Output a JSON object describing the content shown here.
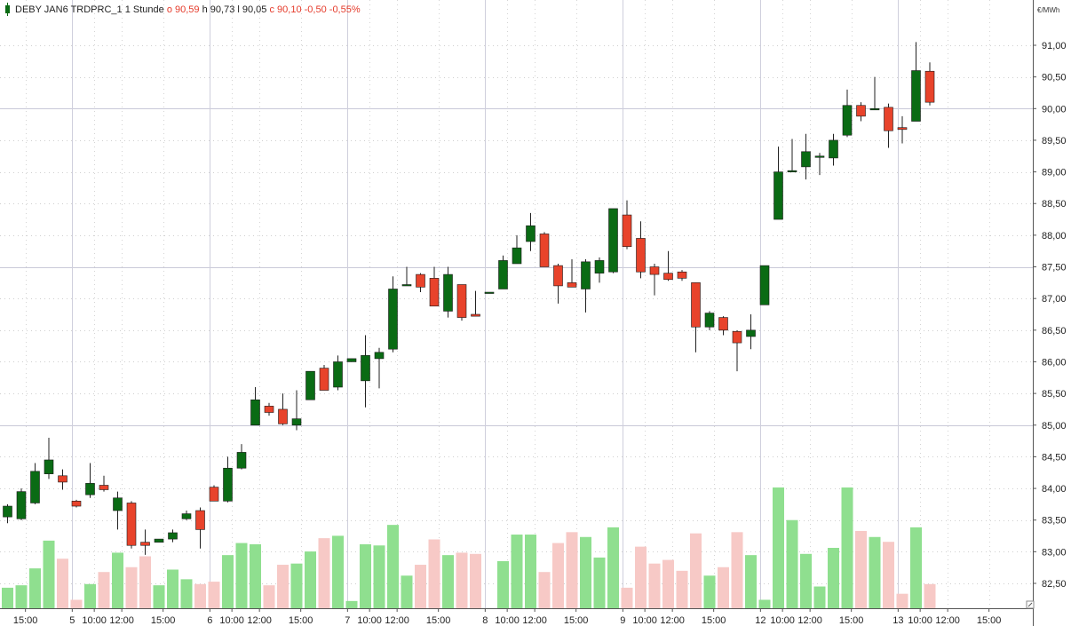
{
  "header": {
    "symbol": "DEBY JAN6 TRDPRC_1",
    "interval": "1 Stunde",
    "o_label": "o",
    "o_value": "90,59",
    "h_label": "h",
    "h_value": "90,73",
    "l_label": "l",
    "l_value": "90,05",
    "c_label": "c",
    "c_value": "90,10",
    "change": "-0,50",
    "change_pct": "-0,55%"
  },
  "colors": {
    "up": "#0a6b14",
    "down": "#e8432b",
    "vol_up": "#8fdf8f",
    "vol_down": "#f7c9c6",
    "grid": "#d6d6e0",
    "header_red": "#e53a2a"
  },
  "chart_data": {
    "type": "candlestick",
    "title": "",
    "y_unit": "€/MWh",
    "ylim": [
      82.2,
      91.45
    ],
    "y_ticks": [
      "91,00",
      "90,50",
      "90,00",
      "89,50",
      "89,00",
      "88,50",
      "88,00",
      "87,50",
      "87,00",
      "86,50",
      "86,00",
      "85,50",
      "85,00",
      "84,50",
      "84,00",
      "83,50",
      "83,00",
      "82,50"
    ],
    "y_tick_values": [
      91.0,
      90.5,
      90.0,
      89.5,
      89.0,
      88.5,
      88.0,
      87.5,
      87.0,
      86.5,
      86.0,
      85.5,
      85.0,
      84.5,
      84.0,
      83.5,
      83.0,
      82.5
    ],
    "x_ticks": [
      {
        "i": 1.3,
        "label": "15:00"
      },
      {
        "i": 4.7,
        "label": "5"
      },
      {
        "i": 6.3,
        "label": "10:00"
      },
      {
        "i": 8.3,
        "label": "12:00"
      },
      {
        "i": 11.3,
        "label": "15:00"
      },
      {
        "i": 14.7,
        "label": "6"
      },
      {
        "i": 16.3,
        "label": "10:00"
      },
      {
        "i": 18.3,
        "label": "12:00"
      },
      {
        "i": 21.3,
        "label": "15:00"
      },
      {
        "i": 24.7,
        "label": "7"
      },
      {
        "i": 26.3,
        "label": "10:00"
      },
      {
        "i": 28.3,
        "label": "12:00"
      },
      {
        "i": 31.3,
        "label": "15:00"
      },
      {
        "i": 34.7,
        "label": "8"
      },
      {
        "i": 36.3,
        "label": "10:00"
      },
      {
        "i": 38.3,
        "label": "12:00"
      },
      {
        "i": 41.3,
        "label": "15:00"
      },
      {
        "i": 44.7,
        "label": "9"
      },
      {
        "i": 46.3,
        "label": "10:00"
      },
      {
        "i": 48.3,
        "label": "12:00"
      },
      {
        "i": 51.3,
        "label": "15:00"
      },
      {
        "i": 54.7,
        "label": "12"
      },
      {
        "i": 56.3,
        "label": "10:00"
      },
      {
        "i": 58.3,
        "label": "12:00"
      },
      {
        "i": 61.3,
        "label": "15:00"
      },
      {
        "i": 64.7,
        "label": "13"
      },
      {
        "i": 66.3,
        "label": "10:00"
      },
      {
        "i": 68.3,
        "label": "12:00"
      },
      {
        "i": 71.3,
        "label": "15:00"
      }
    ],
    "day_separators": [
      4.7,
      14.7,
      24.7,
      34.7,
      44.7,
      54.7,
      64.7
    ],
    "candles": [
      {
        "o": 83.55,
        "h": 83.75,
        "l": 83.45,
        "c": 83.72
      },
      {
        "o": 83.52,
        "h": 84.0,
        "l": 83.5,
        "c": 83.95
      },
      {
        "o": 83.77,
        "h": 84.4,
        "l": 83.75,
        "c": 84.27
      },
      {
        "o": 84.23,
        "h": 84.8,
        "l": 84.15,
        "c": 84.45
      },
      {
        "o": 84.2,
        "h": 84.3,
        "l": 83.98,
        "c": 84.1
      },
      {
        "o": 83.8,
        "h": 83.82,
        "l": 83.7,
        "c": 83.72
      },
      {
        "o": 83.9,
        "h": 84.4,
        "l": 83.85,
        "c": 84.08
      },
      {
        "o": 84.05,
        "h": 84.2,
        "l": 83.95,
        "c": 83.98
      },
      {
        "o": 83.65,
        "h": 83.95,
        "l": 83.35,
        "c": 83.85
      },
      {
        "o": 83.77,
        "h": 83.8,
        "l": 83.05,
        "c": 83.1
      },
      {
        "o": 83.15,
        "h": 83.35,
        "l": 82.95,
        "c": 83.1
      },
      {
        "o": 83.15,
        "h": 83.2,
        "l": 83.15,
        "c": 83.2
      },
      {
        "o": 83.2,
        "h": 83.35,
        "l": 83.15,
        "c": 83.3
      },
      {
        "o": 83.52,
        "h": 83.65,
        "l": 83.5,
        "c": 83.6
      },
      {
        "o": 83.65,
        "h": 83.7,
        "l": 83.05,
        "c": 83.35
      },
      {
        "o": 84.02,
        "h": 84.05,
        "l": 83.8,
        "c": 83.8
      },
      {
        "o": 83.8,
        "h": 84.5,
        "l": 83.78,
        "c": 84.32
      },
      {
        "o": 84.32,
        "h": 84.7,
        "l": 84.3,
        "c": 84.57
      },
      {
        "o": 85.0,
        "h": 85.6,
        "l": 85.0,
        "c": 85.4
      },
      {
        "o": 85.3,
        "h": 85.35,
        "l": 85.15,
        "c": 85.2
      },
      {
        "o": 85.25,
        "h": 85.5,
        "l": 85.0,
        "c": 85.02
      },
      {
        "o": 85.0,
        "h": 85.55,
        "l": 84.92,
        "c": 85.1
      },
      {
        "o": 85.4,
        "h": 85.85,
        "l": 85.4,
        "c": 85.85
      },
      {
        "o": 85.9,
        "h": 85.95,
        "l": 85.55,
        "c": 85.55
      },
      {
        "o": 85.6,
        "h": 86.1,
        "l": 85.55,
        "c": 86.0
      },
      {
        "o": 86.0,
        "h": 86.05,
        "l": 86.02,
        "c": 86.05
      },
      {
        "o": 85.7,
        "h": 86.42,
        "l": 85.28,
        "c": 86.1
      },
      {
        "o": 86.05,
        "h": 86.22,
        "l": 85.58,
        "c": 86.15
      },
      {
        "o": 86.2,
        "h": 87.35,
        "l": 86.15,
        "c": 87.15
      },
      {
        "o": 87.22,
        "h": 87.5,
        "l": 87.2,
        "c": 87.22
      },
      {
        "o": 87.38,
        "h": 87.4,
        "l": 87.1,
        "c": 87.18
      },
      {
        "o": 87.32,
        "h": 87.5,
        "l": 86.88,
        "c": 86.88
      },
      {
        "o": 86.8,
        "h": 87.5,
        "l": 86.7,
        "c": 87.38
      },
      {
        "o": 87.22,
        "h": 87.22,
        "l": 86.65,
        "c": 86.7
      },
      {
        "o": 86.75,
        "h": 87.12,
        "l": 86.72,
        "c": 86.72
      },
      {
        "o": 87.1,
        "h": 87.1,
        "l": 87.1,
        "c": 87.1
      },
      {
        "o": 87.15,
        "h": 87.68,
        "l": 87.15,
        "c": 87.6
      },
      {
        "o": 87.55,
        "h": 88.0,
        "l": 87.55,
        "c": 87.8
      },
      {
        "o": 87.9,
        "h": 88.35,
        "l": 87.75,
        "c": 88.15
      },
      {
        "o": 88.02,
        "h": 88.05,
        "l": 87.5,
        "c": 87.5
      },
      {
        "o": 87.52,
        "h": 87.55,
        "l": 86.92,
        "c": 87.2
      },
      {
        "o": 87.25,
        "h": 87.62,
        "l": 87.18,
        "c": 87.18
      },
      {
        "o": 87.15,
        "h": 87.62,
        "l": 86.78,
        "c": 87.58
      },
      {
        "o": 87.4,
        "h": 87.65,
        "l": 87.25,
        "c": 87.6
      },
      {
        "o": 87.42,
        "h": 88.42,
        "l": 87.4,
        "c": 88.42
      },
      {
        "o": 88.32,
        "h": 88.55,
        "l": 87.78,
        "c": 87.82
      },
      {
        "o": 87.95,
        "h": 88.22,
        "l": 87.32,
        "c": 87.42
      },
      {
        "o": 87.5,
        "h": 87.55,
        "l": 87.05,
        "c": 87.38
      },
      {
        "o": 87.4,
        "h": 87.75,
        "l": 87.28,
        "c": 87.3
      },
      {
        "o": 87.42,
        "h": 87.45,
        "l": 87.28,
        "c": 87.32
      },
      {
        "o": 87.25,
        "h": 87.25,
        "l": 86.15,
        "c": 86.55
      },
      {
        "o": 86.55,
        "h": 86.8,
        "l": 86.5,
        "c": 86.77
      },
      {
        "o": 86.7,
        "h": 86.72,
        "l": 86.42,
        "c": 86.5
      },
      {
        "o": 86.48,
        "h": 86.5,
        "l": 85.85,
        "c": 86.3
      },
      {
        "o": 86.4,
        "h": 86.75,
        "l": 86.2,
        "c": 86.5
      },
      {
        "o": 86.9,
        "h": 87.52,
        "l": 86.9,
        "c": 87.52
      },
      {
        "o": 88.25,
        "h": 89.4,
        "l": 88.25,
        "c": 89.0
      },
      {
        "o": 89.0,
        "h": 89.52,
        "l": 89.0,
        "c": 89.02
      },
      {
        "o": 89.08,
        "h": 89.6,
        "l": 88.88,
        "c": 89.32
      },
      {
        "o": 89.25,
        "h": 89.3,
        "l": 88.95,
        "c": 89.25
      },
      {
        "o": 89.22,
        "h": 89.6,
        "l": 89.1,
        "c": 89.5
      },
      {
        "o": 89.58,
        "h": 90.3,
        "l": 89.55,
        "c": 90.05
      },
      {
        "o": 90.05,
        "h": 90.1,
        "l": 89.8,
        "c": 89.88
      },
      {
        "o": 90.0,
        "h": 90.5,
        "l": 90.0,
        "c": 90.0
      },
      {
        "o": 90.02,
        "h": 90.08,
        "l": 89.38,
        "c": 89.65
      },
      {
        "o": 89.7,
        "h": 89.88,
        "l": 89.45,
        "c": 89.67
      },
      {
        "o": 89.8,
        "h": 91.05,
        "l": 89.8,
        "c": 90.6
      },
      {
        "o": 90.59,
        "h": 90.73,
        "l": 90.05,
        "c": 90.1
      }
    ],
    "volume": {
      "max": 100,
      "values": [
        17,
        19,
        33,
        56,
        41,
        7,
        20,
        30,
        46,
        34,
        43,
        19,
        32,
        24,
        20,
        22,
        44,
        54,
        53,
        19,
        36,
        37,
        47,
        58,
        60,
        6,
        53,
        52,
        69,
        27,
        36,
        57,
        44,
        46,
        45,
        0,
        39,
        61,
        61,
        30,
        54,
        63,
        59,
        42,
        67,
        17,
        51,
        37,
        40,
        31,
        62,
        27,
        34,
        63,
        44,
        7,
        100,
        73,
        45,
        18,
        50,
        100,
        64,
        59,
        55,
        12,
        67,
        20
      ]
    }
  }
}
